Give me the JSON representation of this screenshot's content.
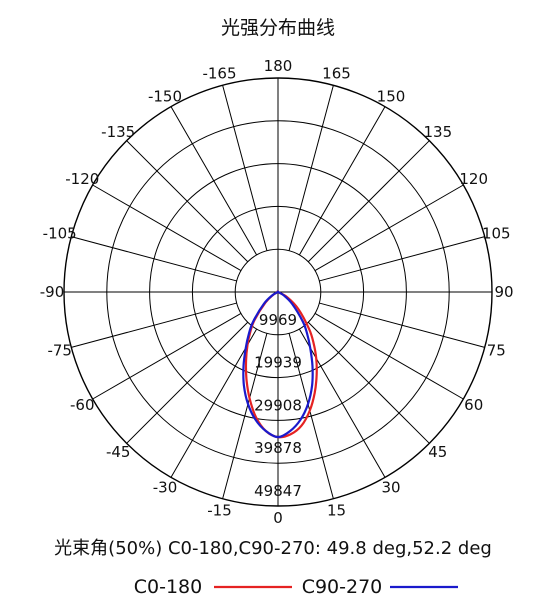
{
  "chart_data": {
    "type": "polar",
    "title": "光强分布曲线",
    "angle_labels": [
      {
        "angle": 180,
        "text": "180"
      },
      {
        "angle": -165,
        "text": "-165"
      },
      {
        "angle": 165,
        "text": "165"
      },
      {
        "angle": -150,
        "text": "-150"
      },
      {
        "angle": 150,
        "text": "150"
      },
      {
        "angle": -135,
        "text": "-135"
      },
      {
        "angle": 135,
        "text": "135"
      },
      {
        "angle": -120,
        "text": "-120"
      },
      {
        "angle": 120,
        "text": "120"
      },
      {
        "angle": -105,
        "text": "-105"
      },
      {
        "angle": 105,
        "text": "105"
      },
      {
        "angle": -90,
        "text": "-90"
      },
      {
        "angle": 90,
        "text": "90"
      },
      {
        "angle": -75,
        "text": "-75"
      },
      {
        "angle": 75,
        "text": "75"
      },
      {
        "angle": -60,
        "text": "-60"
      },
      {
        "angle": 60,
        "text": "60"
      },
      {
        "angle": -45,
        "text": "-45"
      },
      {
        "angle": 45,
        "text": "45"
      },
      {
        "angle": -30,
        "text": "-30"
      },
      {
        "angle": 30,
        "text": "30"
      },
      {
        "angle": -15,
        "text": "-15"
      },
      {
        "angle": 15,
        "text": "15"
      },
      {
        "angle": 0,
        "text": "0"
      }
    ],
    "radial_ticks": [
      9969,
      19939,
      29908,
      39878,
      49847
    ],
    "radial_labels": [
      "9969",
      "19939",
      "29908",
      "39878",
      "49847"
    ],
    "r_max": 49847,
    "series": [
      {
        "name": "C0-180",
        "color": "#e52222",
        "angles": [
          -70,
          -60,
          -50,
          -40,
          -35,
          -30,
          -25,
          -20,
          -15,
          -10,
          -5,
          0,
          5,
          10,
          15,
          20,
          25,
          30,
          35,
          40,
          50,
          60,
          70
        ],
        "values": [
          0,
          1200,
          3800,
          8500,
          11200,
          14200,
          17600,
          21500,
          25600,
          29600,
          32500,
          33800,
          33300,
          31600,
          28600,
          25000,
          21300,
          17800,
          14400,
          11300,
          6200,
          2600,
          0
        ]
      },
      {
        "name": "C90-270",
        "color": "#1a1acc",
        "angles": [
          -70,
          -60,
          -50,
          -40,
          -35,
          -30,
          -25,
          -20,
          -15,
          -10,
          -5,
          0,
          5,
          10,
          15,
          20,
          25,
          30,
          35,
          40,
          50,
          60,
          70
        ],
        "values": [
          0,
          1500,
          4300,
          9000,
          11800,
          15000,
          19000,
          23200,
          27000,
          30200,
          32500,
          33800,
          32500,
          30200,
          27000,
          23200,
          19000,
          15000,
          11800,
          9000,
          4300,
          1500,
          0
        ]
      }
    ],
    "beam_angle_text": "光束角(50%) C0-180,C90-270: 49.8 deg,52.2 deg",
    "legend": [
      "C0-180",
      "C90-270"
    ]
  }
}
